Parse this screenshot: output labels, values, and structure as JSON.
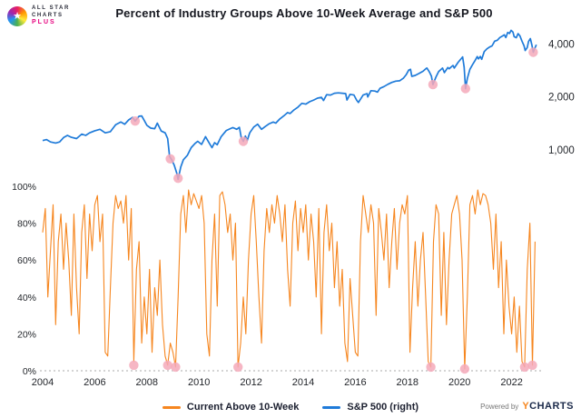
{
  "header": {
    "title": "Percent of Industry Groups Above 10-Week Average and S&P 500"
  },
  "logo": {
    "star_icon": "★",
    "line1": "ALL STAR",
    "line2": "CHARTS",
    "plus": "PLUS"
  },
  "legend": {
    "items": [
      {
        "label": "Current Above 10-Week",
        "color": "#f6861f"
      },
      {
        "label": "S&P 500 (right)",
        "color": "#1f7bd9"
      }
    ]
  },
  "footer": {
    "powered_by": "Powered by",
    "brand_y": "Y",
    "brand_rest": "CHARTS"
  },
  "chart_data": {
    "type": "line",
    "title": "Percent of Industry Groups Above 10-Week Average and S&P 500",
    "x_range": [
      2004,
      2023.2
    ],
    "x_ticks": [
      2004,
      2006,
      2008,
      2010,
      2012,
      2014,
      2016,
      2018,
      2020,
      2022
    ],
    "left_axis": {
      "ticks": [
        0,
        20,
        40,
        60,
        80,
        100
      ],
      "suffix": "%",
      "range": [
        0,
        100
      ]
    },
    "right_axis": {
      "scale": "log",
      "ticks": [
        1000,
        2000,
        4000
      ],
      "labels": [
        "1,000",
        "2,000",
        "4,000"
      ]
    },
    "grid": "none",
    "legend_position": "bottom",
    "series": [
      {
        "name": "Current Above 10-Week",
        "axis": "left",
        "color": "#f6861f",
        "x_start": 2004.0,
        "x_step": 0.1,
        "values": [
          75,
          88,
          40,
          65,
          90,
          25,
          70,
          85,
          55,
          80,
          60,
          30,
          85,
          45,
          20,
          75,
          90,
          50,
          85,
          65,
          90,
          95,
          70,
          85,
          10,
          8,
          45,
          80,
          95,
          88,
          92,
          80,
          95,
          60,
          88,
          5,
          55,
          70,
          15,
          40,
          20,
          55,
          10,
          45,
          30,
          60,
          25,
          8,
          3,
          15,
          10,
          2,
          40,
          85,
          95,
          75,
          98,
          90,
          96,
          92,
          88,
          95,
          80,
          20,
          8,
          60,
          85,
          35,
          95,
          97,
          90,
          75,
          85,
          60,
          80,
          2,
          15,
          40,
          20,
          60,
          85,
          95,
          70,
          40,
          15,
          65,
          88,
          75,
          90,
          80,
          95,
          85,
          70,
          90,
          55,
          35,
          80,
          92,
          65,
          88,
          75,
          90,
          60,
          85,
          70,
          40,
          88,
          20,
          75,
          90,
          65,
          80,
          45,
          70,
          35,
          55,
          15,
          5,
          50,
          30,
          10,
          8,
          70,
          95,
          85,
          75,
          90,
          80,
          30,
          88,
          75,
          60,
          85,
          45,
          70,
          88,
          55,
          80,
          90,
          85,
          95,
          10,
          45,
          70,
          35,
          60,
          75,
          40,
          5,
          2,
          70,
          90,
          85,
          30,
          75,
          25,
          60,
          85,
          90,
          95,
          85,
          60,
          1,
          40,
          90,
          95,
          85,
          98,
          90,
          96,
          95,
          90,
          80,
          55,
          85,
          45,
          70,
          20,
          60,
          35,
          20,
          40,
          10,
          35,
          5,
          2,
          55,
          80,
          3,
          70
        ]
      },
      {
        "name": "S&P 500 (right)",
        "axis": "right",
        "color": "#1f7bd9",
        "points": [
          [
            2004.0,
            1130
          ],
          [
            2004.15,
            1145
          ],
          [
            2004.3,
            1110
          ],
          [
            2004.5,
            1095
          ],
          [
            2004.65,
            1110
          ],
          [
            2004.8,
            1175
          ],
          [
            2004.95,
            1210
          ],
          [
            2005.1,
            1180
          ],
          [
            2005.3,
            1160
          ],
          [
            2005.5,
            1230
          ],
          [
            2005.65,
            1210
          ],
          [
            2005.8,
            1250
          ],
          [
            2006.0,
            1285
          ],
          [
            2006.2,
            1310
          ],
          [
            2006.4,
            1250
          ],
          [
            2006.6,
            1270
          ],
          [
            2006.8,
            1390
          ],
          [
            2007.0,
            1440
          ],
          [
            2007.15,
            1400
          ],
          [
            2007.3,
            1480
          ],
          [
            2007.45,
            1530
          ],
          [
            2007.55,
            1460
          ],
          [
            2007.7,
            1555
          ],
          [
            2007.8,
            1560
          ],
          [
            2007.9,
            1470
          ],
          [
            2008.0,
            1380
          ],
          [
            2008.15,
            1330
          ],
          [
            2008.3,
            1320
          ],
          [
            2008.4,
            1420
          ],
          [
            2008.55,
            1280
          ],
          [
            2008.7,
            1250
          ],
          [
            2008.8,
            1160
          ],
          [
            2008.87,
            920
          ],
          [
            2008.95,
            880
          ],
          [
            2009.05,
            820
          ],
          [
            2009.15,
            735
          ],
          [
            2009.2,
            680
          ],
          [
            2009.3,
            800
          ],
          [
            2009.4,
            880
          ],
          [
            2009.55,
            930
          ],
          [
            2009.7,
            1030
          ],
          [
            2009.85,
            1090
          ],
          [
            2009.95,
            1120
          ],
          [
            2010.1,
            1075
          ],
          [
            2010.25,
            1190
          ],
          [
            2010.4,
            1090
          ],
          [
            2010.5,
            1030
          ],
          [
            2010.6,
            1100
          ],
          [
            2010.7,
            1070
          ],
          [
            2010.85,
            1190
          ],
          [
            2010.95,
            1240
          ],
          [
            2011.05,
            1290
          ],
          [
            2011.2,
            1320
          ],
          [
            2011.3,
            1340
          ],
          [
            2011.45,
            1310
          ],
          [
            2011.55,
            1345
          ],
          [
            2011.62,
            1180
          ],
          [
            2011.7,
            1120
          ],
          [
            2011.78,
            1200
          ],
          [
            2011.85,
            1130
          ],
          [
            2011.95,
            1250
          ],
          [
            2012.1,
            1350
          ],
          [
            2012.25,
            1400
          ],
          [
            2012.4,
            1310
          ],
          [
            2012.55,
            1360
          ],
          [
            2012.7,
            1410
          ],
          [
            2012.85,
            1440
          ],
          [
            2012.95,
            1420
          ],
          [
            2013.1,
            1500
          ],
          [
            2013.25,
            1560
          ],
          [
            2013.4,
            1630
          ],
          [
            2013.5,
            1610
          ],
          [
            2013.65,
            1690
          ],
          [
            2013.8,
            1750
          ],
          [
            2013.95,
            1840
          ],
          [
            2014.1,
            1820
          ],
          [
            2014.25,
            1880
          ],
          [
            2014.4,
            1920
          ],
          [
            2014.55,
            1970
          ],
          [
            2014.7,
            1990
          ],
          [
            2014.78,
            1910
          ],
          [
            2014.9,
            2060
          ],
          [
            2015.05,
            2050
          ],
          [
            2015.2,
            2100
          ],
          [
            2015.35,
            2110
          ],
          [
            2015.5,
            2100
          ],
          [
            2015.63,
            2090
          ],
          [
            2015.68,
            1920
          ],
          [
            2015.8,
            2070
          ],
          [
            2015.95,
            2050
          ],
          [
            2016.05,
            1920
          ],
          [
            2016.12,
            1860
          ],
          [
            2016.3,
            2050
          ],
          [
            2016.45,
            2090
          ],
          [
            2016.48,
            2000
          ],
          [
            2016.6,
            2170
          ],
          [
            2016.75,
            2160
          ],
          [
            2016.85,
            2130
          ],
          [
            2016.95,
            2240
          ],
          [
            2017.1,
            2290
          ],
          [
            2017.25,
            2360
          ],
          [
            2017.4,
            2420
          ],
          [
            2017.55,
            2460
          ],
          [
            2017.7,
            2470
          ],
          [
            2017.85,
            2560
          ],
          [
            2017.95,
            2670
          ],
          [
            2018.05,
            2840
          ],
          [
            2018.12,
            2870
          ],
          [
            2018.17,
            2620
          ],
          [
            2018.3,
            2650
          ],
          [
            2018.45,
            2720
          ],
          [
            2018.6,
            2800
          ],
          [
            2018.72,
            2900
          ],
          [
            2018.75,
            2920
          ],
          [
            2018.85,
            2760
          ],
          [
            2018.92,
            2630
          ],
          [
            2018.98,
            2350
          ],
          [
            2019.1,
            2600
          ],
          [
            2019.2,
            2790
          ],
          [
            2019.35,
            2920
          ],
          [
            2019.42,
            2750
          ],
          [
            2019.55,
            2940
          ],
          [
            2019.6,
            2890
          ],
          [
            2019.75,
            3020
          ],
          [
            2019.8,
            2920
          ],
          [
            2019.95,
            3150
          ],
          [
            2020.05,
            3280
          ],
          [
            2020.12,
            3380
          ],
          [
            2020.18,
            2950
          ],
          [
            2020.23,
            2230
          ],
          [
            2020.3,
            2550
          ],
          [
            2020.4,
            2870
          ],
          [
            2020.5,
            3050
          ],
          [
            2020.6,
            3230
          ],
          [
            2020.68,
            3390
          ],
          [
            2020.73,
            3290
          ],
          [
            2020.8,
            3400
          ],
          [
            2020.85,
            3270
          ],
          [
            2020.95,
            3620
          ],
          [
            2021.05,
            3750
          ],
          [
            2021.15,
            3840
          ],
          [
            2021.25,
            3900
          ],
          [
            2021.35,
            4150
          ],
          [
            2021.45,
            4200
          ],
          [
            2021.55,
            4350
          ],
          [
            2021.65,
            4440
          ],
          [
            2021.72,
            4510
          ],
          [
            2021.78,
            4350
          ],
          [
            2021.85,
            4650
          ],
          [
            2021.92,
            4590
          ],
          [
            2021.98,
            4780
          ],
          [
            2022.05,
            4680
          ],
          [
            2022.1,
            4400
          ],
          [
            2022.18,
            4340
          ],
          [
            2022.25,
            4580
          ],
          [
            2022.32,
            4450
          ],
          [
            2022.4,
            4150
          ],
          [
            2022.48,
            3900
          ],
          [
            2022.52,
            3670
          ],
          [
            2022.6,
            3820
          ],
          [
            2022.65,
            4130
          ],
          [
            2022.72,
            4290
          ],
          [
            2022.78,
            3950
          ],
          [
            2022.83,
            3590
          ],
          [
            2022.88,
            3750
          ],
          [
            2022.92,
            3870
          ],
          [
            2022.95,
            3960
          ]
        ]
      }
    ],
    "markers": {
      "color": "#f4a9ba",
      "sp500": [
        [
          2007.55,
          1460
        ],
        [
          2008.9,
          890
        ],
        [
          2009.2,
          690
        ],
        [
          2011.7,
          1120
        ],
        [
          2018.98,
          2350
        ],
        [
          2020.23,
          2230
        ],
        [
          2022.83,
          3590
        ]
      ],
      "percent": [
        [
          2007.5,
          3
        ],
        [
          2008.8,
          3
        ],
        [
          2009.1,
          2
        ],
        [
          2011.5,
          2
        ],
        [
          2018.9,
          2
        ],
        [
          2020.2,
          1
        ],
        [
          2022.5,
          2
        ],
        [
          2022.8,
          3
        ]
      ]
    }
  }
}
